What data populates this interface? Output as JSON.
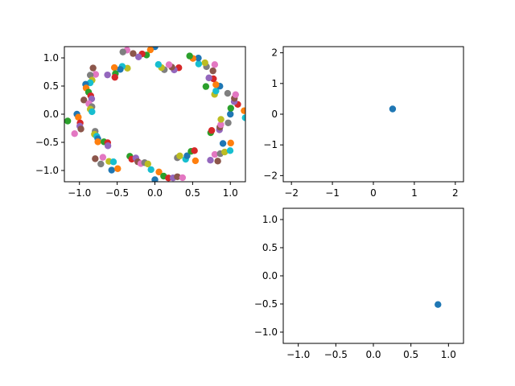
{
  "figure": {
    "background": "#ffffff"
  },
  "colors": [
    "#1f77b4",
    "#ff7f0e",
    "#2ca02c",
    "#d62728",
    "#9467bd",
    "#8c564b",
    "#e377c2",
    "#7f7f7f",
    "#bcbd22",
    "#17becf"
  ],
  "chart_data": [
    {
      "type": "scatter",
      "title": "",
      "xlabel": "",
      "ylabel": "",
      "xlim": [
        -1.2,
        1.2
      ],
      "ylim": [
        -1.2,
        1.2
      ],
      "xticks": [
        "-1.0",
        "-0.5",
        "0.0",
        "0.5",
        "1.0"
      ],
      "yticks": [
        "-1.0",
        "-0.5",
        "0.0",
        "0.5",
        "1.0"
      ],
      "grid": false,
      "legend": "none",
      "description_of_series": "",
      "ring": {
        "count": 120,
        "angle_start_deg": 0,
        "angle_step_deg": 3,
        "radius_min": 0.8,
        "radius_max": 1.0,
        "note": ""
      }
    },
    {
      "type": "scatter",
      "title": "",
      "xlabel": "",
      "ylabel": "",
      "xlim": [
        -2.2,
        2.2
      ],
      "ylim": [
        -2.2,
        2.2
      ],
      "xticks": [
        "-2",
        "-1",
        "0",
        "1",
        "2"
      ],
      "yticks": [
        "-2",
        "-1",
        "0",
        "1",
        "2"
      ],
      "grid": false,
      "legend": "none",
      "points": [
        {
          "x": 0.47,
          "y": 0.17,
          "color": "#1f77b4"
        }
      ]
    },
    {
      "type": "scatter",
      "title": "",
      "xlabel": "",
      "ylabel": "",
      "xlim": [
        -1.2,
        1.2
      ],
      "ylim": [
        -1.2,
        1.2
      ],
      "xticks": [
        "-1.0",
        "-0.5",
        "0.0",
        "0.5",
        "1.0"
      ],
      "yticks": [
        "-1.0",
        "-0.5",
        "0.0",
        "0.5",
        "1.0"
      ],
      "grid": false,
      "legend": "none",
      "points": [
        {
          "x": 0.86,
          "y": -0.51,
          "color": "#1f77b4"
        }
      ]
    }
  ]
}
